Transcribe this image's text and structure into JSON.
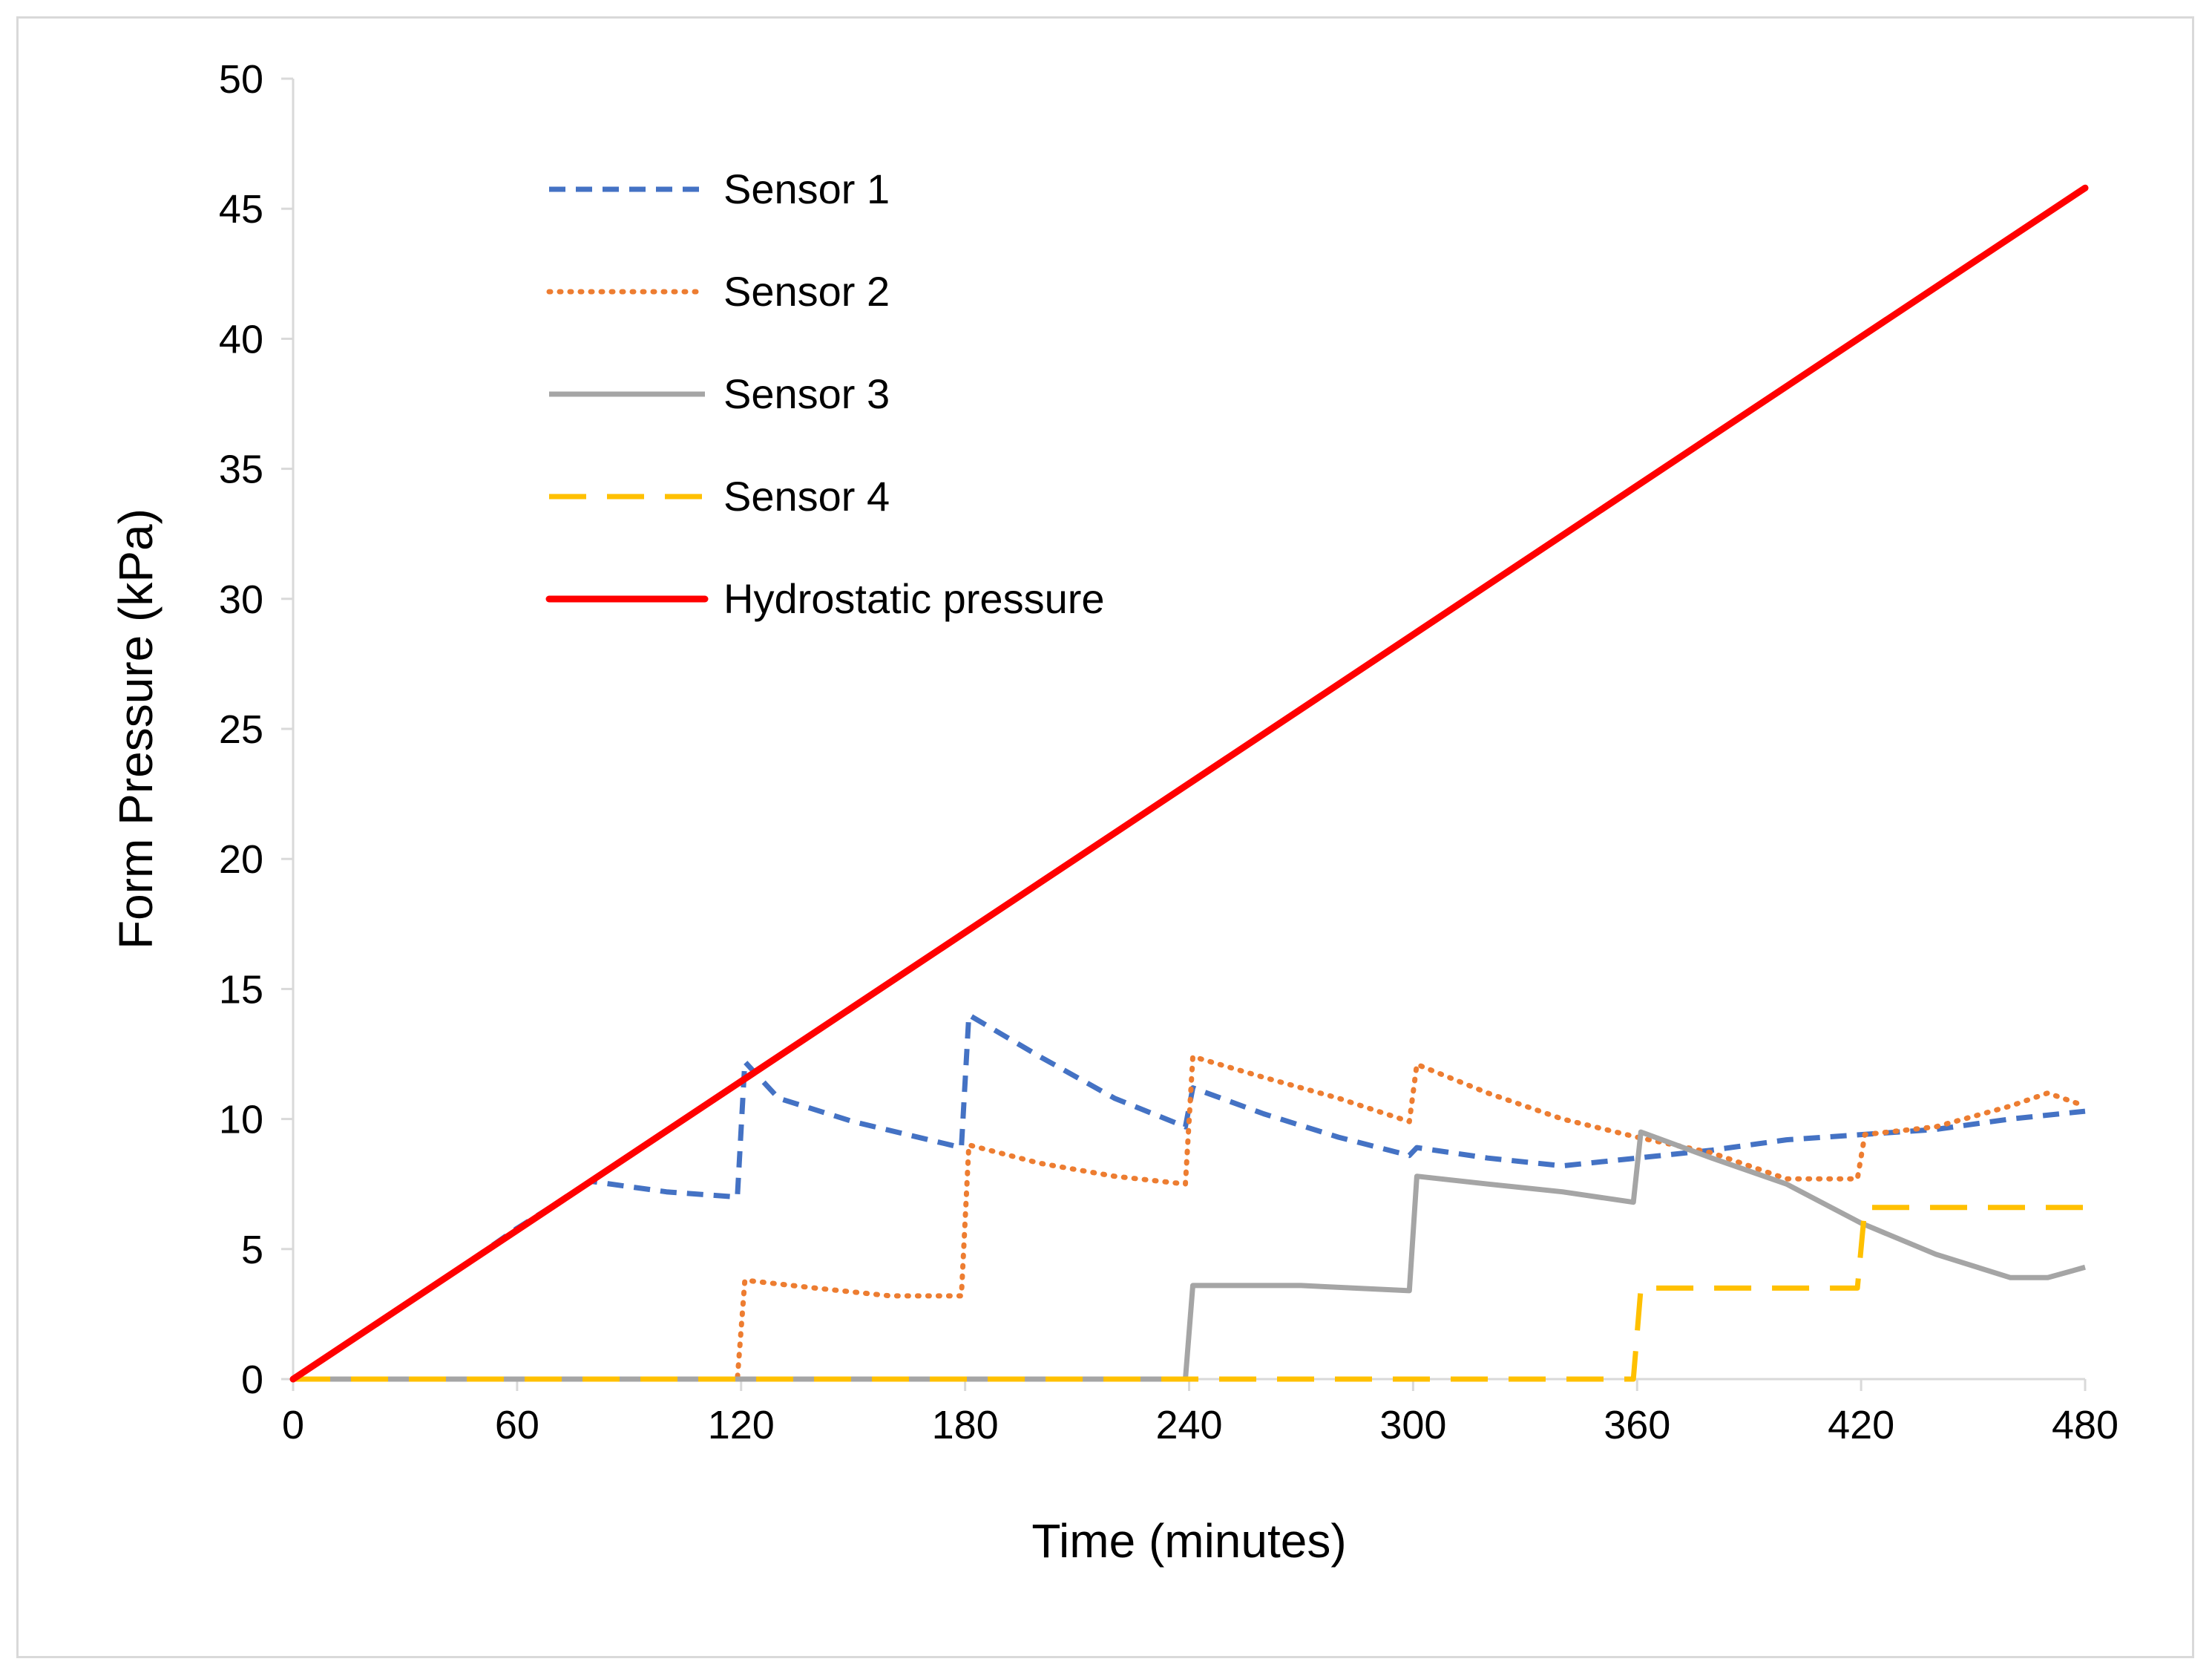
{
  "chart_data": {
    "type": "line",
    "title": "",
    "xlabel": "Time (minutes)",
    "ylabel": "Form Pressure (kPa)",
    "xlim": [
      0,
      480
    ],
    "ylim": [
      0,
      50
    ],
    "xticks": [
      0,
      60,
      120,
      180,
      240,
      300,
      360,
      420,
      480
    ],
    "yticks": [
      0,
      5,
      10,
      15,
      20,
      25,
      30,
      35,
      40,
      45,
      50
    ],
    "grid": false,
    "legend_position": "top-left",
    "series": [
      {
        "name": "Sensor 1",
        "color": "#4472c4",
        "style": "dash",
        "x": [
          0,
          20,
          40,
          60,
          80,
          100,
          119,
          121,
          130,
          150,
          179,
          181,
          200,
          220,
          239,
          241,
          260,
          280,
          299,
          301,
          320,
          340,
          360,
          380,
          400,
          420,
          440,
          460,
          480
        ],
        "y": [
          0,
          1.9,
          3.8,
          5.8,
          7.6,
          7.2,
          7.0,
          12.2,
          10.8,
          9.9,
          8.9,
          14.0,
          12.4,
          10.8,
          9.7,
          11.2,
          10.2,
          9.3,
          8.6,
          8.9,
          8.5,
          8.2,
          8.5,
          8.8,
          9.2,
          9.4,
          9.6,
          10.0,
          10.3
        ]
      },
      {
        "name": "Sensor 2",
        "color": "#ed7d31",
        "style": "dot",
        "x": [
          0,
          119,
          121,
          140,
          160,
          179,
          181,
          200,
          220,
          239,
          241,
          260,
          280,
          299,
          301,
          320,
          340,
          360,
          380,
          400,
          419,
          421,
          440,
          460,
          470,
          480
        ],
        "y": [
          0,
          0,
          3.8,
          3.5,
          3.2,
          3.2,
          9.0,
          8.3,
          7.8,
          7.5,
          12.4,
          11.6,
          10.8,
          9.9,
          12.1,
          11.0,
          10.0,
          9.3,
          8.7,
          7.7,
          7.7,
          9.4,
          9.7,
          10.5,
          11.0,
          10.5
        ]
      },
      {
        "name": "Sensor 3",
        "color": "#a5a5a5",
        "style": "solid",
        "x": [
          0,
          239,
          241,
          270,
          299,
          301,
          320,
          340,
          359,
          361,
          380,
          400,
          420,
          440,
          460,
          470,
          480
        ],
        "y": [
          0,
          0,
          3.6,
          3.6,
          3.4,
          7.8,
          7.5,
          7.2,
          6.8,
          9.5,
          8.5,
          7.5,
          6.0,
          4.8,
          3.9,
          3.9,
          4.3
        ]
      },
      {
        "name": "Sensor 4",
        "color": "#ffc000",
        "style": "longdash",
        "x": [
          0,
          359,
          361,
          419,
          421,
          480
        ],
        "y": [
          0,
          0,
          3.5,
          3.5,
          6.6,
          6.6
        ]
      },
      {
        "name": "Hydrostatic pressure",
        "color": "#ff0000",
        "style": "solid-thick",
        "x": [
          0,
          480
        ],
        "y": [
          0,
          45.8
        ]
      }
    ]
  }
}
